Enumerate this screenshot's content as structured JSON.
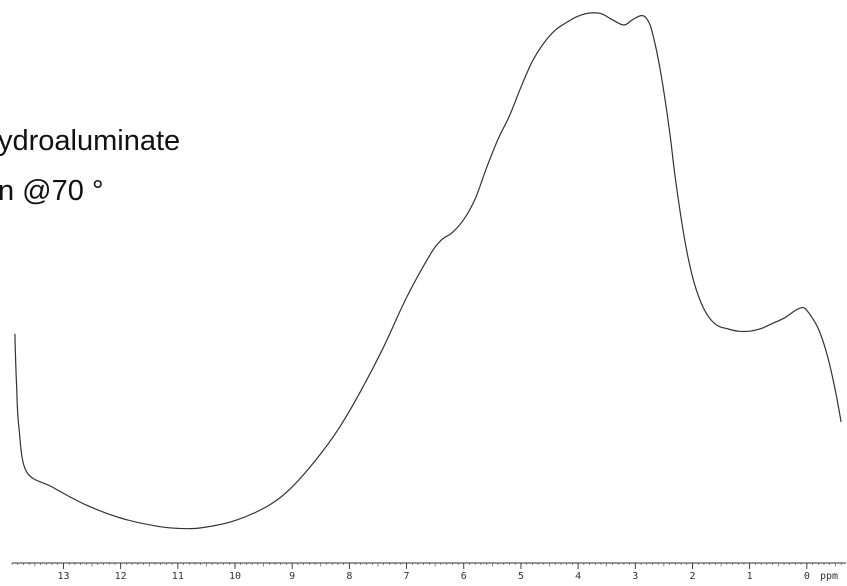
{
  "chart_data": {
    "type": "line",
    "title_lines": [
      "ydroaluminate",
      "n @70 °"
    ],
    "xlabel": "ppm",
    "xaxis_reversed": true,
    "xlim": [
      13.9,
      -0.65
    ],
    "x_ticks": [
      13,
      12,
      11,
      10,
      9,
      8,
      7,
      6,
      5,
      4,
      3,
      2,
      1,
      0
    ],
    "yaxis_shown": false,
    "grid": false,
    "series": [
      {
        "x": [
          13.85,
          13.82,
          13.78,
          13.65,
          13.2,
          12.6,
          12.0,
          11.4,
          11.0,
          10.6,
          10.0,
          9.4,
          9.0,
          8.6,
          8.2,
          7.8,
          7.4,
          7.0,
          6.6,
          6.4,
          6.2,
          6.0,
          5.8,
          5.6,
          5.4,
          5.2,
          5.0,
          4.8,
          4.6,
          4.4,
          4.2,
          4.0,
          3.8,
          3.6,
          3.4,
          3.2,
          3.05,
          2.9,
          2.8,
          2.7,
          2.55,
          2.4,
          2.3,
          2.15,
          2.0,
          1.85,
          1.7,
          1.55,
          1.4,
          1.2,
          1.0,
          0.8,
          0.6,
          0.4,
          0.2,
          0.1,
          0.05,
          0.0,
          -0.1,
          -0.2,
          -0.3,
          -0.4,
          -0.5,
          -0.6
        ],
        "y": [
          0.38,
          0.28,
          0.2,
          0.115,
          0.085,
          0.05,
          0.025,
          0.01,
          0.005,
          0.006,
          0.02,
          0.05,
          0.085,
          0.135,
          0.195,
          0.27,
          0.355,
          0.45,
          0.53,
          0.56,
          0.575,
          0.6,
          0.64,
          0.7,
          0.755,
          0.8,
          0.855,
          0.905,
          0.94,
          0.965,
          0.98,
          0.992,
          0.998,
          0.997,
          0.985,
          0.975,
          0.985,
          0.993,
          0.987,
          0.96,
          0.88,
          0.77,
          0.68,
          0.57,
          0.49,
          0.44,
          0.41,
          0.395,
          0.39,
          0.385,
          0.385,
          0.39,
          0.4,
          0.41,
          0.425,
          0.43,
          0.43,
          0.425,
          0.41,
          0.39,
          0.36,
          0.32,
          0.27,
          0.21
        ]
      }
    ]
  }
}
